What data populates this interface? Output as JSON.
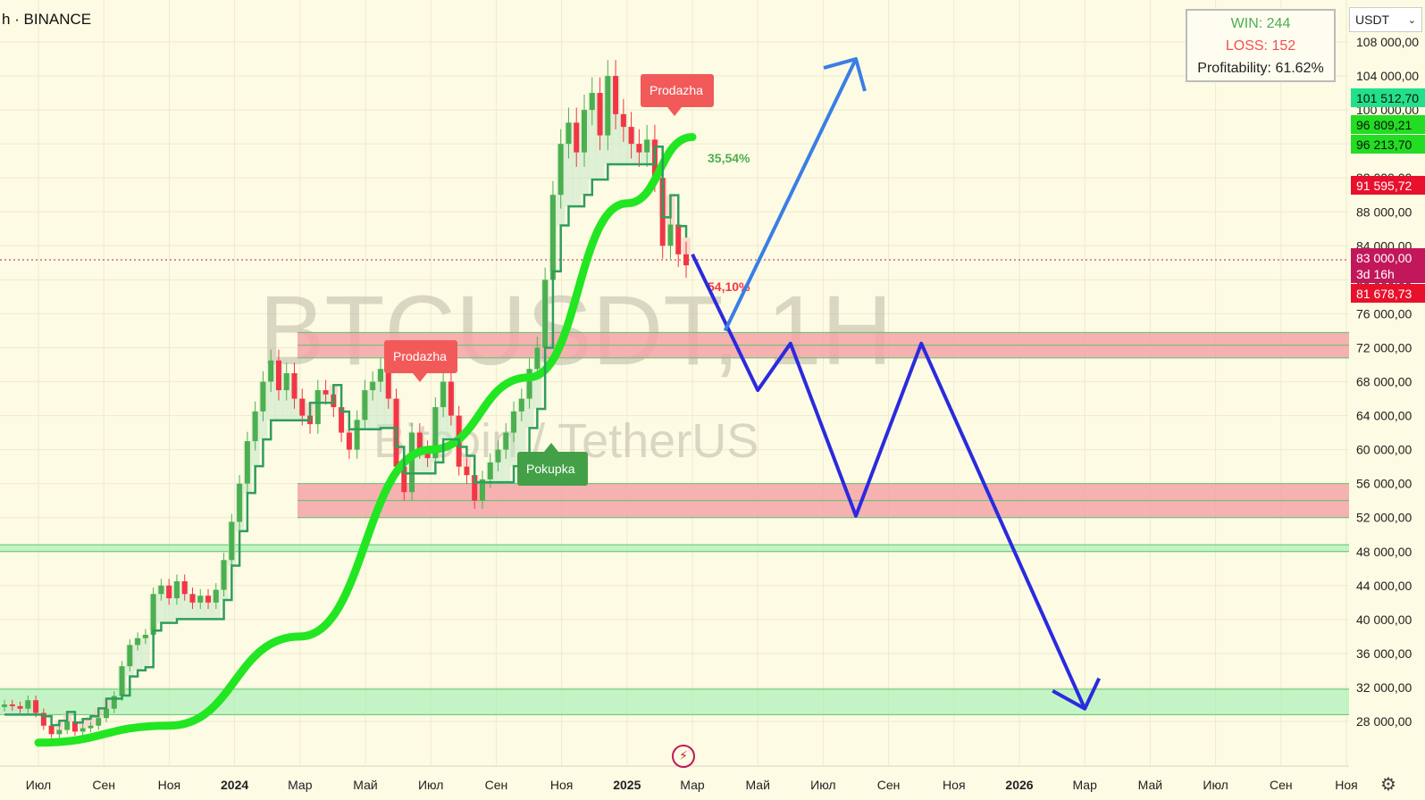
{
  "header": {
    "title": "h · BINANCE"
  },
  "currency_selector": {
    "value": "USDT"
  },
  "stats": {
    "win": "WIN: 244",
    "loss": "LOSS: 152",
    "profitability": "Profitability: 61.62%"
  },
  "watermark": {
    "line1": "BTCUSDT, 1H",
    "line2": "Bitcoin / TetherUS"
  },
  "signals": [
    {
      "label": "Prodazha",
      "type": "sell"
    },
    {
      "label": "Prodazha",
      "type": "sell"
    },
    {
      "label": "Pokupka",
      "type": "buy"
    }
  ],
  "percent_labels": [
    {
      "text": "35,54%",
      "color": "#4caf50"
    },
    {
      "text": "54,10%",
      "color": "#f23645"
    }
  ],
  "price_badges": [
    {
      "text": "101 512,70",
      "bg": "#22e08a",
      "fg": "#111"
    },
    {
      "text": "96 809,21",
      "bg": "#22dd22",
      "fg": "#111"
    },
    {
      "text": "96 213,70",
      "bg": "#22dd22",
      "fg": "#111"
    },
    {
      "text": "91 595,72",
      "bg": "#e8112d",
      "fg": "#fff"
    },
    {
      "text": "83 000,00",
      "bg": "#c2185b",
      "fg": "#fff"
    },
    {
      "text": "3d 16h",
      "bg": "#c2185b",
      "fg": "#fff"
    },
    {
      "text": "81 678,73",
      "bg": "#e8112d",
      "fg": "#fff"
    }
  ],
  "colors": {
    "background": "#fdfbe3",
    "bull": "#4caf50",
    "bear": "#f23645",
    "trend": "#22e622",
    "zone_red": "#f5a3a8",
    "zone_green": "#9ff0b0",
    "projection_blue": "#2a2ae0",
    "projection_light": "#3a7ee6"
  },
  "chart_data": {
    "type": "candlestick",
    "symbol": "BTCUSDT",
    "y_ticks": [
      28000,
      32000,
      36000,
      40000,
      44000,
      48000,
      52000,
      56000,
      60000,
      64000,
      68000,
      72000,
      76000,
      80000,
      84000,
      88000,
      92000,
      96000,
      100000,
      104000,
      108000
    ],
    "y_tick_labels": [
      "28 000,00",
      "32 000,00",
      "36 000,00",
      "40 000,00",
      "44 000,00",
      "48 000,00",
      "52 000,00",
      "56 000,00",
      "60 000,00",
      "64 000,00",
      "68 000,00",
      "72 000,00",
      "76 000,00",
      "80 000,00",
      "84 000,00",
      "88 000,00",
      "92 000,00",
      "96 000,00",
      "100 000,00",
      "104 000,00",
      "108 000,00"
    ],
    "x_labels": [
      "Июл",
      "Сен",
      "Ноя",
      "2024",
      "Мар",
      "Май",
      "Июл",
      "Сен",
      "Ноя",
      "2025",
      "Мар",
      "Май",
      "Июл",
      "Сен",
      "Ноя",
      "2026",
      "Мар",
      "Май",
      "Июл",
      "Сен",
      "Ноя"
    ],
    "x_bold": [
      "2024",
      "2025",
      "2026"
    ],
    "ylim": [
      26000,
      110000
    ],
    "close_series": [
      30000,
      29800,
      29500,
      30500,
      29000,
      27500,
      26500,
      27000,
      28000,
      26800,
      27200,
      27500,
      28400,
      29500,
      31000,
      34500,
      37000,
      37800,
      38200,
      43000,
      44000,
      42500,
      44500,
      43000,
      42000,
      42800,
      42000,
      43500,
      47000,
      51500,
      56000,
      61000,
      64500,
      68000,
      70500,
      67000,
      69000,
      66000,
      64000,
      63000,
      67000,
      66500,
      65000,
      62000,
      60000,
      63500,
      67000,
      68000,
      69500,
      66000,
      58000,
      55000,
      62000,
      60000,
      59000,
      65000,
      68000,
      64000,
      58000,
      57000,
      54000,
      56500,
      58500,
      60000,
      62000,
      64500,
      66000,
      69500,
      72000,
      80000,
      90000,
      96000,
      98500,
      95000,
      100000,
      102000,
      97000,
      104000,
      99500,
      98000,
      96000,
      95000,
      96500,
      92000,
      84000,
      86500,
      83000,
      81700
    ],
    "trend_line": [
      {
        "x": "Июл 2023",
        "y": 25500
      },
      {
        "x": "Ноя 2023",
        "y": 27500
      },
      {
        "x": "Мар 2024",
        "y": 38000
      },
      {
        "x": "Июл 2024",
        "y": 60000
      },
      {
        "x": "Окт 2024",
        "y": 68500
      },
      {
        "x": "Янв 2025",
        "y": 89000
      },
      {
        "x": "Мар 2025",
        "y": 96800
      }
    ],
    "zones": [
      {
        "from": 70800,
        "to": 73800,
        "color": "red"
      },
      {
        "from": 52000,
        "to": 56000,
        "color": "red"
      },
      {
        "from": 48000,
        "to": 48800,
        "color": "green"
      },
      {
        "from": 28800,
        "to": 31800,
        "color": "green"
      }
    ],
    "current_price": 83000,
    "projection_bear": [
      {
        "x": "Мар 2025",
        "y": 83000
      },
      {
        "x": "Май 2025",
        "y": 67000
      },
      {
        "x": "Июн 2025",
        "y": 72500
      },
      {
        "x": "Авг 2025",
        "y": 52200
      },
      {
        "x": "Окт 2025",
        "y": 72500
      },
      {
        "x": "Мар 2026",
        "y": 29500
      }
    ],
    "projection_bull": [
      {
        "x": "Апр 2025",
        "y": 74000
      },
      {
        "x": "Авг 2025",
        "y": 106000
      }
    ]
  }
}
